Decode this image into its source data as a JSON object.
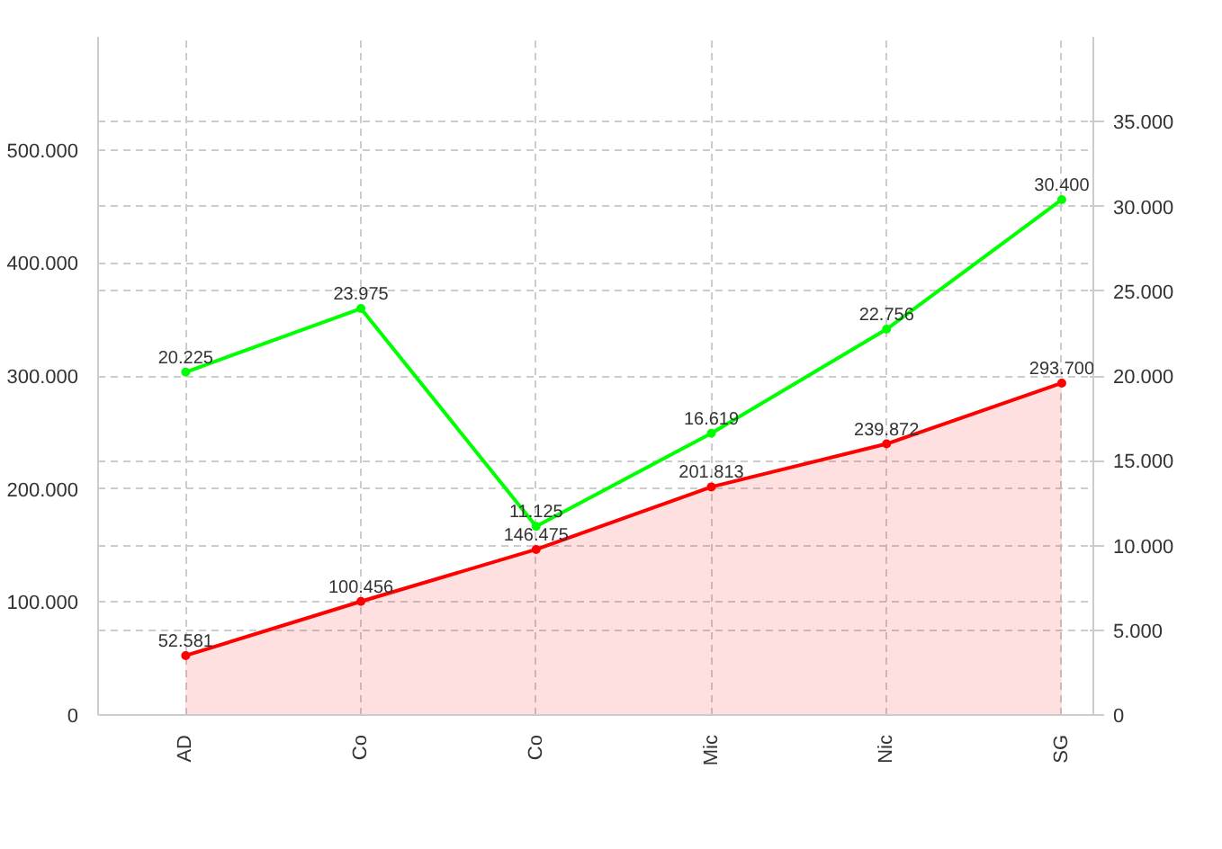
{
  "chart_data": {
    "type": "line",
    "categories": [
      "AD",
      "Co",
      "Co",
      "Mic",
      "Nic",
      "SG"
    ],
    "series": [
      {
        "type": "area",
        "color": "#ff0000",
        "values": [
          52581,
          100456,
          146475,
          201813,
          239872,
          293700
        ],
        "value_labels": [
          "52.581",
          "100.456",
          "146.475",
          "201.813",
          "239.872",
          "293.700"
        ]
      },
      {
        "axis": "y2",
        "color": "#00ff00",
        "values": [
          20225,
          23975,
          11125,
          16619,
          22756,
          30400
        ],
        "value_labels": [
          "20.225",
          "23.975",
          "11.125",
          "16.619",
          "22.756",
          "30.400"
        ]
      }
    ],
    "ylim": [
      0,
      600000
    ],
    "yticks": [
      0,
      {
        "value": 100000,
        "label": "100.000"
      },
      {
        "value": 200000,
        "label": "200.000"
      },
      {
        "value": 300000,
        "label": "300.000"
      },
      {
        "value": 400000,
        "label": "400.000"
      },
      {
        "value": 500000,
        "label": "500.000"
      }
    ],
    "y2lim": [
      0,
      40000
    ],
    "y2ticks": [
      0,
      {
        "value": 5000,
        "label": "5.000"
      },
      {
        "value": 10000,
        "label": "10.000"
      },
      {
        "value": 15000,
        "label": "15.000"
      },
      {
        "value": 20000,
        "label": "20.000"
      },
      {
        "value": 25000,
        "label": "25.000"
      },
      {
        "value": 30000,
        "label": "30.000"
      },
      {
        "value": 35000,
        "label": "35.000"
      }
    ],
    "grid": true,
    "marker": "circle"
  }
}
